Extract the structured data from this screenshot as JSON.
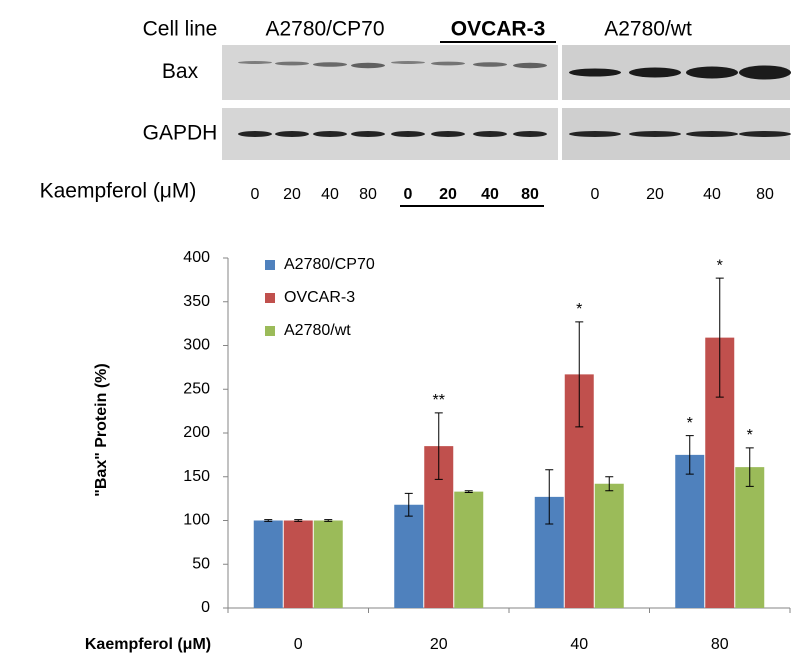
{
  "blot": {
    "header_label": "Cell line",
    "rows": [
      "Bax",
      "GAPDH"
    ],
    "lane_axis_label": "Kaempferol (μM)",
    "groups": [
      {
        "name": "A2780/CP70",
        "lanes": [
          0,
          20,
          40,
          80
        ]
      },
      {
        "name": "OVCAR-3",
        "lanes": [
          0,
          20,
          40,
          80
        ]
      },
      {
        "name": "A2780/wt",
        "lanes": [
          0,
          20,
          40,
          80
        ]
      }
    ]
  },
  "chart_data": {
    "type": "bar",
    "x_label": "Kaempferol (μM)",
    "y_label": "\"Bax\" Protein (%)",
    "categories": [
      0,
      20,
      40,
      80
    ],
    "series": [
      {
        "name": "A2780/CP70",
        "color": "#4f81bd",
        "values": [
          100,
          118,
          127,
          175
        ],
        "errors": [
          1,
          13,
          31,
          22
        ],
        "significance": [
          null,
          null,
          null,
          "*"
        ]
      },
      {
        "name": "OVCAR-3",
        "color": "#c0504d",
        "values": [
          100,
          185,
          267,
          309
        ],
        "errors": [
          1,
          38,
          60,
          68
        ],
        "significance": [
          null,
          "**",
          "*",
          "*"
        ]
      },
      {
        "name": "A2780/wt",
        "color": "#9bbb59",
        "values": [
          100,
          133,
          142,
          161
        ],
        "errors": [
          1,
          1,
          8,
          22
        ],
        "significance": [
          null,
          null,
          null,
          "*"
        ]
      }
    ],
    "ylim": [
      0,
      400
    ],
    "yticks": [
      0,
      50,
      100,
      150,
      200,
      250,
      300,
      350,
      400
    ],
    "legend": "top-left"
  }
}
